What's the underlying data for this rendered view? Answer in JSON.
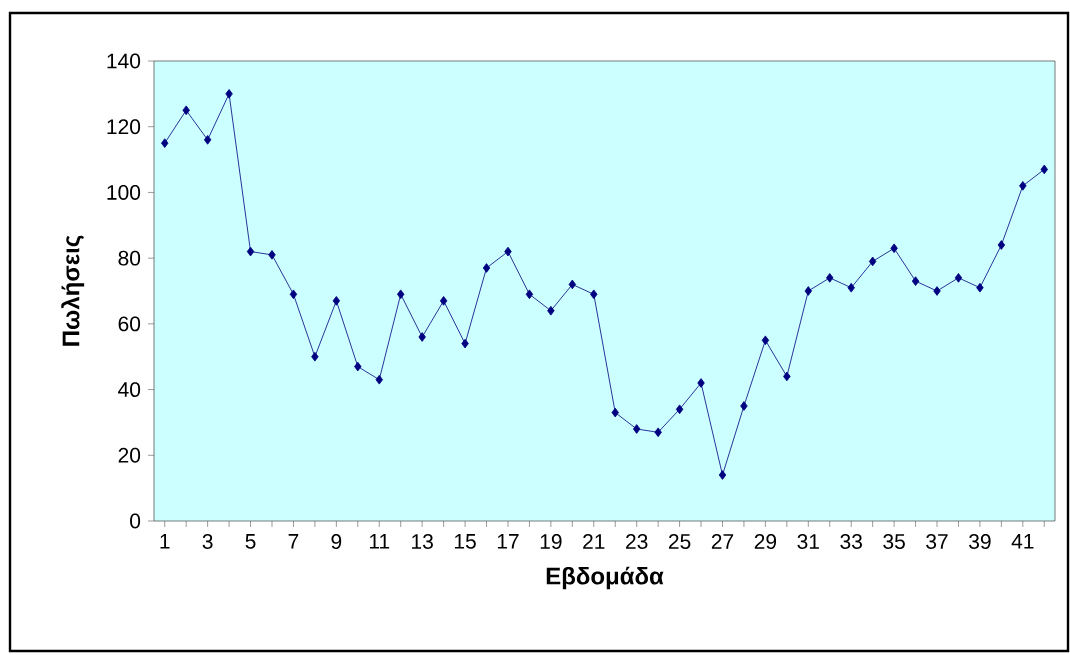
{
  "chart_data": {
    "type": "line",
    "xlabel": "Εβδομάδα",
    "ylabel": "Πωλήσεις",
    "categories": [
      "1",
      null,
      "3",
      null,
      "5",
      null,
      "7",
      null,
      "9",
      null,
      "11",
      null,
      "13",
      null,
      "15",
      null,
      "17",
      null,
      "19",
      null,
      "21",
      null,
      "23",
      null,
      "25",
      null,
      "27",
      null,
      "29",
      null,
      "31",
      null,
      "33",
      null,
      "35",
      null,
      "37",
      null,
      "39",
      null,
      "41",
      null
    ],
    "values": [
      115,
      125,
      116,
      130,
      82,
      81,
      69,
      50,
      67,
      47,
      43,
      69,
      56,
      67,
      54,
      77,
      82,
      69,
      64,
      72,
      69,
      33,
      28,
      27,
      34,
      42,
      14,
      35,
      55,
      44,
      70,
      74,
      71,
      79,
      83,
      73,
      70,
      74,
      71,
      84,
      102,
      107
    ],
    "color": "#000080",
    "marker": "diamond",
    "line_style": "solid",
    "ylim": [
      0,
      140
    ],
    "yticks": [
      0,
      20,
      40,
      60,
      80,
      100,
      120,
      140
    ]
  }
}
